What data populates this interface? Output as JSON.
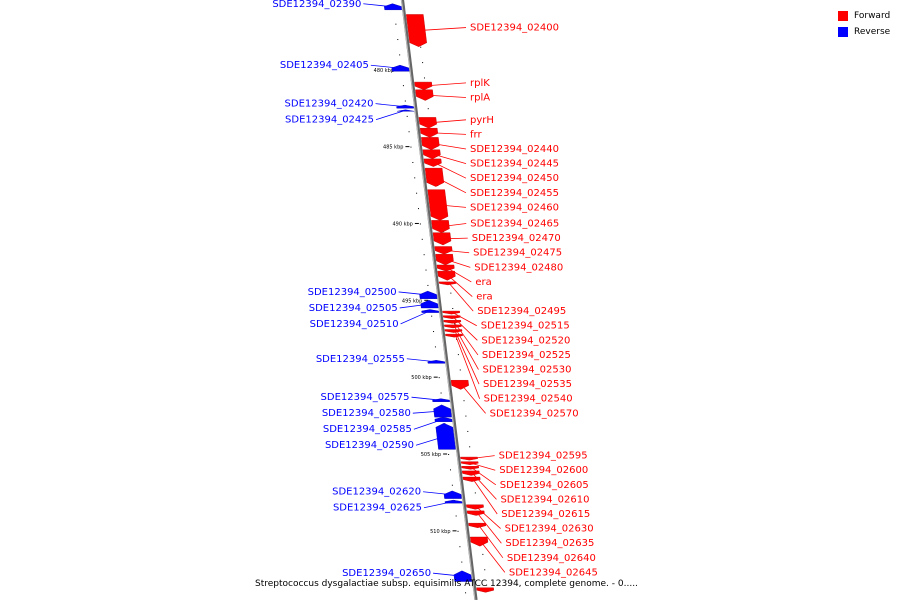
{
  "colors": {
    "forward": "#ff0000",
    "reverse": "#0000ff",
    "backbone": "#808080"
  },
  "legend": [
    {
      "label": "Forward",
      "color": "#ff0000"
    },
    {
      "label": "Reverse",
      "color": "#0000ff"
    }
  ],
  "caption": "Streptococcus dysgalactiae subsp. equisimilis ATCC 12394, complete genome. - 0.....",
  "scale_ticks": [
    {
      "label": "480 kbp",
      "pos": 480
    },
    {
      "label": "485 kbp",
      "pos": 485
    },
    {
      "label": "490 kbp",
      "pos": 490
    },
    {
      "label": "495 kbp",
      "pos": 495
    },
    {
      "label": "500 kbp",
      "pos": 500
    },
    {
      "label": "505 kbp",
      "pos": 505
    },
    {
      "label": "510 kbp",
      "pos": 510
    }
  ],
  "forward_genes": [
    {
      "name": "SDE12394_02400",
      "start": 476.4,
      "end": 478.5
    },
    {
      "name": "rplK",
      "start": 480.8,
      "end": 481.3
    },
    {
      "name": "rplA",
      "start": 481.3,
      "end": 482.0
    },
    {
      "name": "pyrH",
      "start": 483.1,
      "end": 483.8
    },
    {
      "name": "frr",
      "start": 483.8,
      "end": 484.4
    },
    {
      "name": "SDE12394_02440",
      "start": 484.4,
      "end": 485.2
    },
    {
      "name": "SDE12394_02445",
      "start": 485.2,
      "end": 485.8
    },
    {
      "name": "SDE12394_02450",
      "start": 485.8,
      "end": 486.3
    },
    {
      "name": "SDE12394_02455",
      "start": 486.4,
      "end": 487.6
    },
    {
      "name": "SDE12394_02460",
      "start": 487.8,
      "end": 489.8
    },
    {
      "name": "SDE12394_02465",
      "start": 489.8,
      "end": 490.6
    },
    {
      "name": "SDE12394_02470",
      "start": 490.6,
      "end": 491.4
    },
    {
      "name": "SDE12394_02475",
      "start": 491.5,
      "end": 492.0
    },
    {
      "name": "SDE12394_02480",
      "start": 492.0,
      "end": 492.7
    },
    {
      "name": "era",
      "start": 492.7,
      "end": 493.1
    },
    {
      "name": "era",
      "start": 493.1,
      "end": 493.7
    },
    {
      "name": "SDE12394_02495",
      "start": 493.8,
      "end": 494.0
    },
    {
      "name": "SDE12394_02515",
      "start": 495.7,
      "end": 495.9
    },
    {
      "name": "SDE12394_02520",
      "start": 496.0,
      "end": 496.2
    },
    {
      "name": "SDE12394_02525",
      "start": 496.3,
      "end": 496.5
    },
    {
      "name": "SDE12394_02530",
      "start": 496.6,
      "end": 496.8
    },
    {
      "name": "SDE12394_02535",
      "start": 496.9,
      "end": 497.1
    },
    {
      "name": "SDE12394_02540",
      "start": 497.2,
      "end": 497.4
    },
    {
      "name": "SDE12394_02570",
      "start": 500.2,
      "end": 500.8
    },
    {
      "name": "SDE12394_02595",
      "start": 505.2,
      "end": 505.4
    },
    {
      "name": "SDE12394_02600",
      "start": 505.5,
      "end": 505.7
    },
    {
      "name": "SDE12394_02605",
      "start": 505.8,
      "end": 506.0
    },
    {
      "name": "SDE12394_02610",
      "start": 506.1,
      "end": 506.4
    },
    {
      "name": "SDE12394_02615",
      "start": 506.5,
      "end": 506.8
    },
    {
      "name": "SDE12394_02630",
      "start": 508.3,
      "end": 508.6
    },
    {
      "name": "SDE12394_02635",
      "start": 508.7,
      "end": 509.0
    },
    {
      "name": "SDE12394_02640",
      "start": 509.5,
      "end": 509.8
    },
    {
      "name": "SDE12394_02645",
      "start": 510.4,
      "end": 511.0
    },
    {
      "name": "",
      "start": 513.7,
      "end": 514.0
    }
  ],
  "reverse_genes": [
    {
      "name": "SDE12394_02390",
      "start": 475.7,
      "end": 476.1
    },
    {
      "name": "SDE12394_02405",
      "start": 479.7,
      "end": 480.1
    },
    {
      "name": "SDE12394_02420",
      "start": 482.3,
      "end": 482.5
    },
    {
      "name": "SDE12394_02425",
      "start": 482.6,
      "end": 482.7
    },
    {
      "name": "SDE12394_02500",
      "start": 494.4,
      "end": 494.9
    },
    {
      "name": "SDE12394_02505",
      "start": 495.0,
      "end": 495.5
    },
    {
      "name": "SDE12394_02510",
      "start": 495.6,
      "end": 495.8
    },
    {
      "name": "SDE12394_02555",
      "start": 498.9,
      "end": 499.1
    },
    {
      "name": "SDE12394_02575",
      "start": 501.4,
      "end": 501.6
    },
    {
      "name": "SDE12394_02580",
      "start": 501.8,
      "end": 502.6
    },
    {
      "name": "SDE12394_02585",
      "start": 502.6,
      "end": 502.9
    },
    {
      "name": "SDE12394_02590",
      "start": 503.0,
      "end": 504.7
    },
    {
      "name": "SDE12394_02620",
      "start": 507.4,
      "end": 507.9
    },
    {
      "name": "SDE12394_02625",
      "start": 508.0,
      "end": 508.2
    },
    {
      "name": "SDE12394_02650",
      "start": 512.6,
      "end": 513.3
    }
  ]
}
